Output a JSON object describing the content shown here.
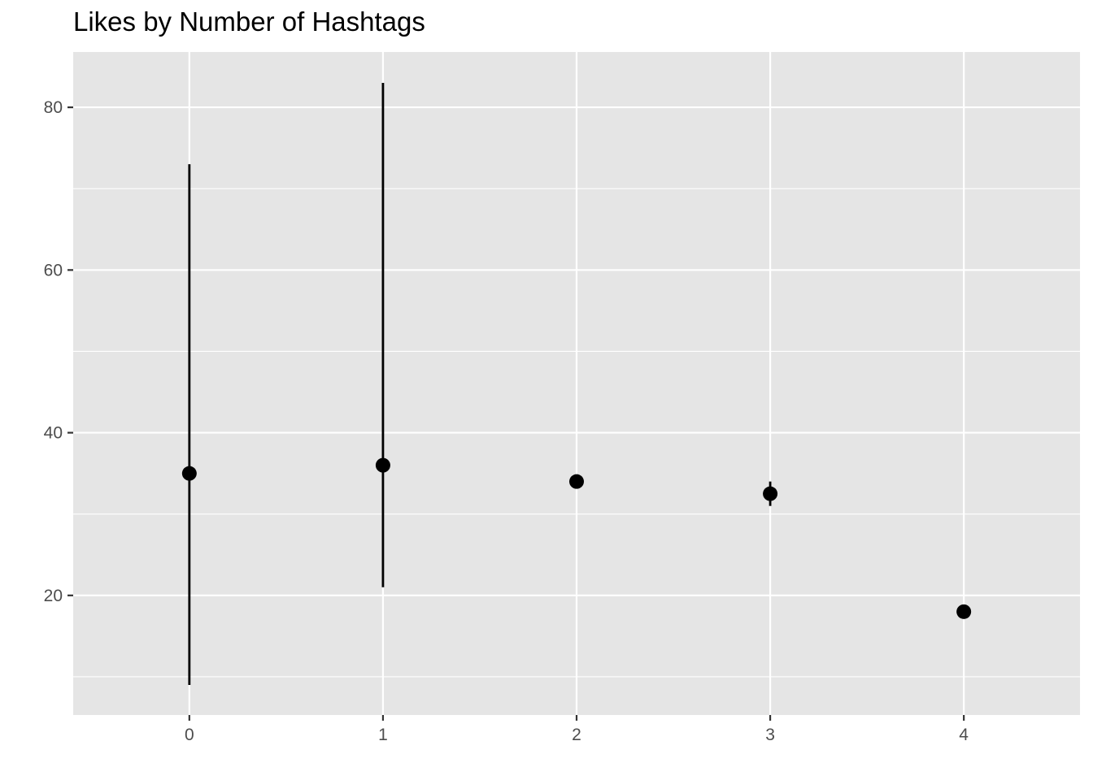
{
  "chart_data": {
    "type": "scatter",
    "title": "Likes by Number of Hashtags",
    "xlabel": "",
    "ylabel": "",
    "x_ticks": [
      0,
      1,
      2,
      3,
      4
    ],
    "y_ticks": [
      20,
      40,
      60,
      80
    ],
    "xlim": [
      -0.6,
      4.6
    ],
    "ylim": [
      5.3,
      86.8
    ],
    "grid": true,
    "legend": "none",
    "points": [
      {
        "x": 0,
        "y": 35,
        "ymin": 9,
        "ymax": 73
      },
      {
        "x": 1,
        "y": 36,
        "ymin": 21,
        "ymax": 83
      },
      {
        "x": 2,
        "y": 34,
        "ymin": 34,
        "ymax": 34
      },
      {
        "x": 3,
        "y": 32.5,
        "ymin": 31,
        "ymax": 34
      },
      {
        "x": 4,
        "y": 18,
        "ymin": 18,
        "ymax": 18
      }
    ],
    "colors": {
      "panel": "#e5e5e5",
      "grid": "#ffffff",
      "point": "#000000",
      "axis_text": "#4d4d4d"
    }
  }
}
